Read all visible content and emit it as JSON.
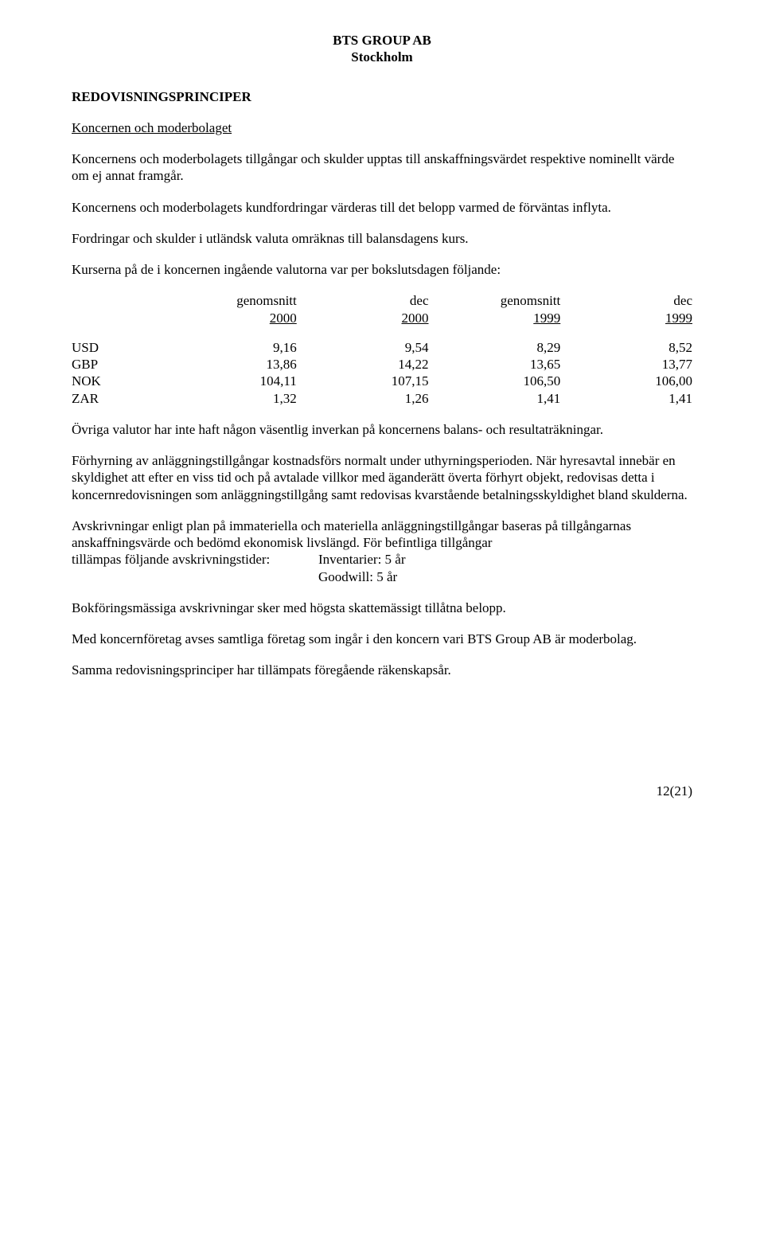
{
  "header": {
    "company": "BTS GROUP AB",
    "city": "Stockholm"
  },
  "section_title": "REDOVISNINGSPRINCIPER",
  "subheading": "Koncernen och moderbolaget",
  "para1": "Koncernens och moderbolagets tillgångar och skulder upptas till anskaffningsvärdet respektive nominellt värde om ej annat framgår.",
  "para2": "Koncernens och moderbolagets kundfordringar värderas till det belopp varmed de förväntas inflyta.",
  "para3": "Fordringar och skulder i utländsk valuta omräknas till balansdagens kurs.",
  "para4": "Kurserna på de i koncernen ingående valutorna var per bokslutsdagen följande:",
  "rates_table": {
    "header_labels": [
      "genomsnitt",
      "dec",
      "genomsnitt",
      "dec"
    ],
    "years": [
      "2000",
      "2000",
      "1999",
      "1999"
    ],
    "rows": [
      {
        "label": "USD",
        "values": [
          "9,16",
          "9,54",
          "8,29",
          "8,52"
        ]
      },
      {
        "label": "GBP",
        "values": [
          "13,86",
          "14,22",
          "13,65",
          "13,77"
        ]
      },
      {
        "label": "NOK",
        "values": [
          "104,11",
          "107,15",
          "106,50",
          "106,00"
        ]
      },
      {
        "label": "ZAR",
        "values": [
          "1,32",
          "1,26",
          "1,41",
          "1,41"
        ]
      }
    ]
  },
  "para5": "Övriga valutor har inte haft någon väsentlig inverkan på koncernens balans- och resultaträkningar.",
  "para6": "Förhyrning av anläggningstillgångar kostnadsförs normalt under uthyrningsperioden. När hyresavtal innebär en skyldighet att efter en viss tid och på avtalade villkor med äganderätt överta förhyrt objekt, redovisas detta i koncernredovisningen som anläggningstillgång samt redovisas kvarstående betalningsskyldighet bland skulderna.",
  "depreciation": {
    "line1_pre": "Avskrivningar enligt plan på immateriella och materiella anläggningstillgångar baseras på tillgångarnas anskaffningsvärde och bedömd ekonomisk livslängd. För befintliga tillgångar",
    "line2_label": "tillämpas följande avskrivningstider:",
    "line2_value": "Inventarier: 5 år",
    "line3_value": "Goodwill: 5 år"
  },
  "para8": "Bokföringsmässiga avskrivningar sker med högsta skattemässigt tillåtna belopp.",
  "para9": "Med koncernföretag avses samtliga företag som ingår i den koncern vari BTS Group AB är moderbolag.",
  "para10": "Samma redovisningsprinciper har tillämpats föregående räkenskapsår.",
  "footer": "12(21)"
}
